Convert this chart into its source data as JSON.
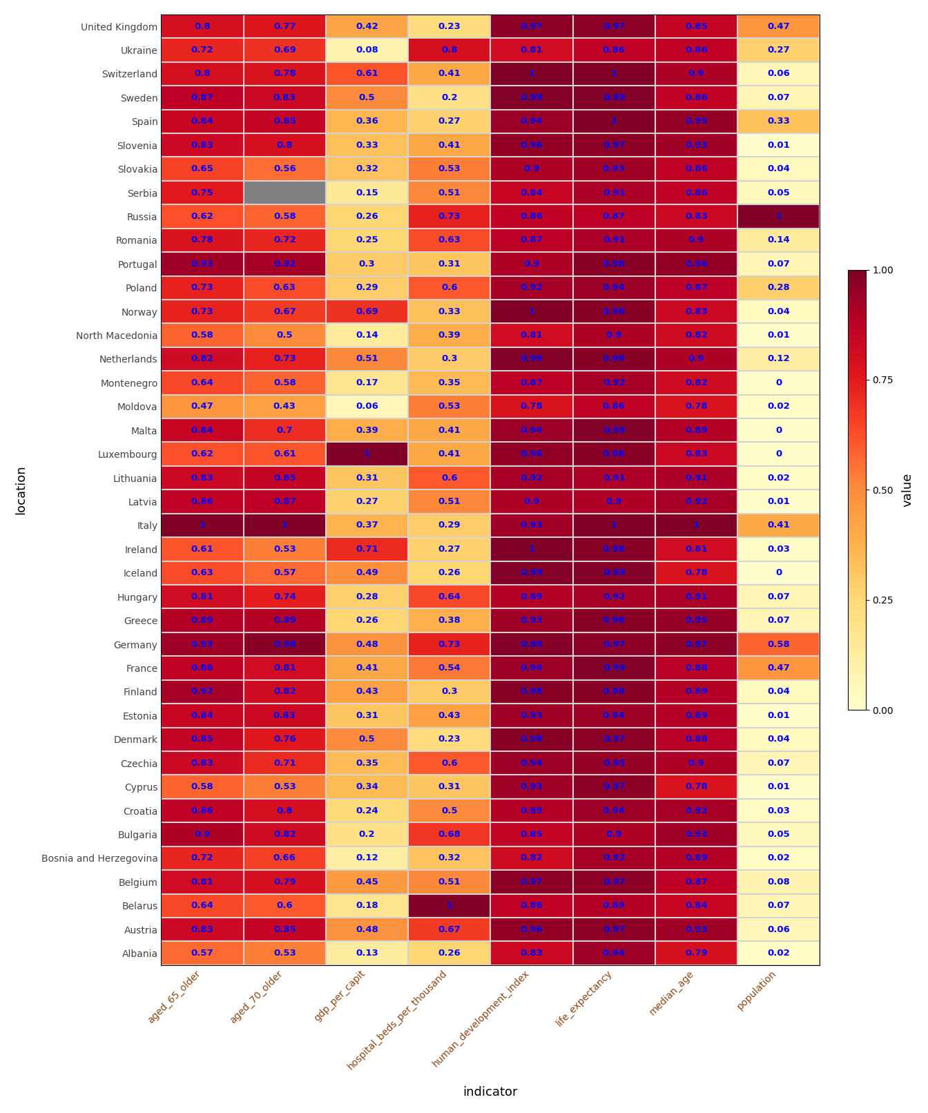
{
  "countries": [
    "United Kingdom",
    "Ukraine",
    "Switzerland",
    "Sweden",
    "Spain",
    "Slovenia",
    "Slovakia",
    "Serbia",
    "Russia",
    "Romania",
    "Portugal",
    "Poland",
    "Norway",
    "North Macedonia",
    "Netherlands",
    "Montenegro",
    "Moldova",
    "Malta",
    "Luxembourg",
    "Lithuania",
    "Latvia",
    "Italy",
    "Ireland",
    "Iceland",
    "Hungary",
    "Greece",
    "Germany",
    "France",
    "Finland",
    "Estonia",
    "Denmark",
    "Czechia",
    "Cyprus",
    "Croatia",
    "Bulgaria",
    "Bosnia and Herzegovina",
    "Belgium",
    "Belarus",
    "Austria",
    "Albania"
  ],
  "indicators": [
    "aged_65_older",
    "aged_70_older",
    "gdp_per_capit",
    "hospital_beds_per_thousand",
    "human_development_index",
    "life_expectancy",
    "median_age",
    "population"
  ],
  "data": {
    "United Kingdom": [
      0.8,
      0.77,
      0.42,
      0.23,
      0.97,
      0.97,
      0.85,
      0.47
    ],
    "Ukraine": [
      0.72,
      0.69,
      0.08,
      0.8,
      0.81,
      0.86,
      0.86,
      0.27
    ],
    "Switzerland": [
      0.8,
      0.78,
      0.61,
      0.41,
      1.0,
      1.0,
      0.9,
      0.06
    ],
    "Sweden": [
      0.87,
      0.83,
      0.5,
      0.2,
      0.99,
      0.99,
      0.86,
      0.07
    ],
    "Spain": [
      0.84,
      0.85,
      0.36,
      0.27,
      0.94,
      1.0,
      0.95,
      0.33
    ],
    "Slovenia": [
      0.83,
      0.8,
      0.33,
      0.41,
      0.96,
      0.97,
      0.93,
      0.01
    ],
    "Slovakia": [
      0.65,
      0.56,
      0.32,
      0.53,
      0.9,
      0.93,
      0.86,
      0.04
    ],
    "Serbia": [
      0.75,
      null,
      0.15,
      0.51,
      0.84,
      0.91,
      0.86,
      0.05
    ],
    "Russia": [
      0.62,
      0.58,
      0.26,
      0.73,
      0.86,
      0.87,
      0.83,
      1.0
    ],
    "Romania": [
      0.78,
      0.72,
      0.25,
      0.63,
      0.87,
      0.91,
      0.9,
      0.14
    ],
    "Portugal": [
      0.93,
      0.92,
      0.3,
      0.31,
      0.9,
      0.98,
      0.96,
      0.07
    ],
    "Poland": [
      0.73,
      0.63,
      0.29,
      0.6,
      0.92,
      0.94,
      0.87,
      0.28
    ],
    "Norway": [
      0.73,
      0.67,
      0.69,
      0.33,
      1.0,
      0.98,
      0.83,
      0.04
    ],
    "North Macedonia": [
      0.58,
      0.5,
      0.14,
      0.39,
      0.81,
      0.9,
      0.82,
      0.01
    ],
    "Netherlands": [
      0.82,
      0.73,
      0.51,
      0.3,
      0.99,
      0.98,
      0.9,
      0.12
    ],
    "Montenegro": [
      0.64,
      0.58,
      0.17,
      0.35,
      0.87,
      0.92,
      0.82,
      0.0
    ],
    "Moldova": [
      0.47,
      0.43,
      0.06,
      0.53,
      0.78,
      0.86,
      0.78,
      0.02
    ],
    "Malta": [
      0.84,
      0.7,
      0.39,
      0.41,
      0.94,
      0.99,
      0.89,
      0.0
    ],
    "Luxembourg": [
      0.62,
      0.61,
      1.0,
      0.41,
      0.96,
      0.98,
      0.83,
      0.0
    ],
    "Lithuania": [
      0.83,
      0.85,
      0.31,
      0.6,
      0.92,
      0.91,
      0.91,
      0.02
    ],
    "Latvia": [
      0.86,
      0.87,
      0.27,
      0.51,
      0.9,
      0.9,
      0.92,
      0.01
    ],
    "Italy": [
      1.0,
      1.0,
      0.37,
      0.29,
      0.93,
      1.0,
      1.0,
      0.41
    ],
    "Ireland": [
      0.61,
      0.53,
      0.71,
      0.27,
      1.0,
      0.98,
      0.81,
      0.03
    ],
    "Iceland": [
      0.63,
      0.57,
      0.49,
      0.26,
      0.99,
      0.99,
      0.78,
      0.0
    ],
    "Hungary": [
      0.81,
      0.74,
      0.28,
      0.64,
      0.89,
      0.92,
      0.91,
      0.07
    ],
    "Greece": [
      0.89,
      0.89,
      0.26,
      0.38,
      0.93,
      0.98,
      0.95,
      0.07
    ],
    "Germany": [
      0.93,
      0.98,
      0.48,
      0.73,
      0.99,
      0.97,
      0.97,
      0.58
    ],
    "France": [
      0.86,
      0.81,
      0.41,
      0.54,
      0.94,
      0.99,
      0.88,
      0.47
    ],
    "Finland": [
      0.92,
      0.82,
      0.43,
      0.3,
      0.98,
      0.98,
      0.89,
      0.04
    ],
    "Estonia": [
      0.84,
      0.83,
      0.31,
      0.43,
      0.93,
      0.94,
      0.89,
      0.01
    ],
    "Denmark": [
      0.85,
      0.76,
      0.5,
      0.23,
      0.98,
      0.97,
      0.88,
      0.04
    ],
    "Czechia": [
      0.83,
      0.71,
      0.35,
      0.6,
      0.94,
      0.95,
      0.9,
      0.07
    ],
    "Cyprus": [
      0.58,
      0.53,
      0.34,
      0.31,
      0.93,
      0.97,
      0.78,
      0.01
    ],
    "Croatia": [
      0.86,
      0.8,
      0.24,
      0.5,
      0.89,
      0.94,
      0.92,
      0.03
    ],
    "Bulgaria": [
      0.9,
      0.82,
      0.2,
      0.68,
      0.85,
      0.9,
      0.93,
      0.05
    ],
    "Bosnia and Herzegovina": [
      0.72,
      0.66,
      0.12,
      0.32,
      0.82,
      0.92,
      0.89,
      0.02
    ],
    "Belgium": [
      0.81,
      0.79,
      0.45,
      0.51,
      0.97,
      0.97,
      0.87,
      0.08
    ],
    "Belarus": [
      0.64,
      0.6,
      0.18,
      1.0,
      0.86,
      0.89,
      0.84,
      0.07
    ],
    "Austria": [
      0.83,
      0.85,
      0.48,
      0.67,
      0.96,
      0.97,
      0.93,
      0.06
    ],
    "Albania": [
      0.57,
      0.53,
      0.13,
      0.26,
      0.83,
      0.94,
      0.79,
      0.02
    ]
  },
  "xlabel": "indicator",
  "ylabel": "location",
  "cmap": "YlOrRd",
  "vmin": 0.0,
  "vmax": 1.0,
  "cell_text_color": "blue",
  "nan_color": "#808080",
  "colorbar_label": "value",
  "colorbar_ticks": [
    0.0,
    0.25,
    0.5,
    0.75,
    1.0
  ],
  "colorbar_ticklabels": [
    "0.00",
    "0.25",
    "0.50",
    "0.75",
    "1.00"
  ],
  "xtick_color": "#8B4513",
  "ytick_color": "#444444",
  "cell_linewidth": 1.5
}
